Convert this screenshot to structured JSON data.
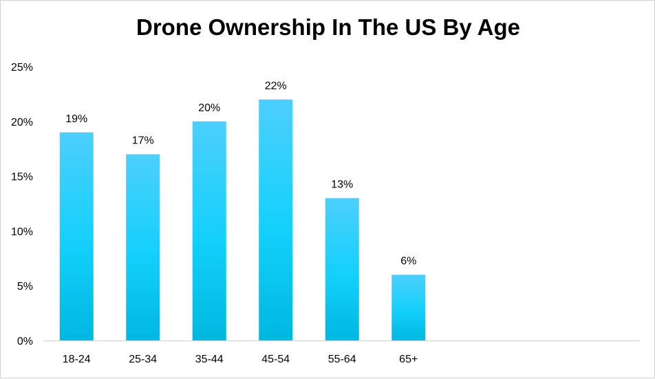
{
  "chart_data": {
    "type": "bar",
    "title": "Drone Ownership In The US By Age",
    "xlabel": "",
    "ylabel": "",
    "categories": [
      "18-24",
      "25-34",
      "35-44",
      "45-54",
      "55-64",
      "65+"
    ],
    "values": [
      19,
      17,
      20,
      22,
      13,
      6
    ],
    "data_labels": [
      "19%",
      "17%",
      "20%",
      "22%",
      "13%",
      "6%"
    ],
    "ylim": [
      0,
      25
    ],
    "y_ticks": [
      0,
      5,
      10,
      15,
      20,
      25
    ],
    "y_tick_labels": [
      "0%",
      "5%",
      "10%",
      "15%",
      "20%",
      "25%"
    ],
    "grid": false,
    "legend": "none"
  },
  "colors": {
    "bar_top": "#4dcffd",
    "bar_bottom": "#00b7e0",
    "axis": "#d9d9d9",
    "text": "#000000"
  }
}
